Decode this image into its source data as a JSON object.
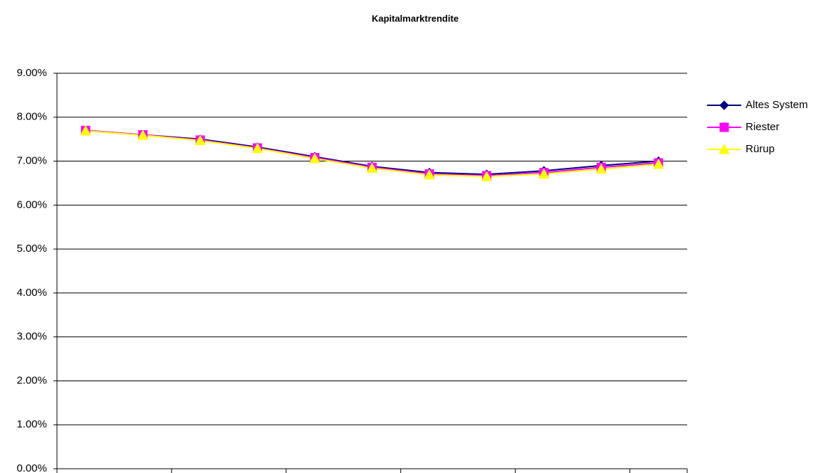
{
  "chart_data": {
    "type": "line",
    "title": "Kapitalmarktrendite",
    "categories": [
      null,
      null,
      null,
      null,
      null,
      null,
      null,
      null,
      null,
      null,
      null
    ],
    "series": [
      {
        "name": "Altes System",
        "color": "#000080",
        "marker": "diamond",
        "values": [
          7.7,
          7.6,
          7.5,
          7.32,
          7.1,
          6.88,
          6.74,
          6.7,
          6.78,
          6.9,
          7.0
        ]
      },
      {
        "name": "Riester",
        "color": "#ff00ff",
        "marker": "square",
        "values": [
          7.7,
          7.6,
          7.48,
          7.3,
          7.08,
          6.86,
          6.71,
          6.67,
          6.74,
          6.86,
          6.96
        ]
      },
      {
        "name": "Rürup",
        "color": "#ffff00",
        "marker": "triangle",
        "values": [
          7.69,
          7.59,
          7.47,
          7.29,
          7.06,
          6.84,
          6.69,
          6.65,
          6.71,
          6.82,
          6.93
        ]
      }
    ],
    "ylim": [
      0,
      9
    ],
    "yticks": [
      {
        "value": 0,
        "label": "0.00%"
      },
      {
        "value": 1,
        "label": "1.00%"
      },
      {
        "value": 2,
        "label": "2.00%"
      },
      {
        "value": 3,
        "label": "3.00%"
      },
      {
        "value": 4,
        "label": "4.00%"
      },
      {
        "value": 5,
        "label": "5.00%"
      },
      {
        "value": 6,
        "label": "6.00%"
      },
      {
        "value": 7,
        "label": "7.00%"
      },
      {
        "value": 8,
        "label": "8.00%"
      },
      {
        "value": 9,
        "label": "9.00%"
      }
    ],
    "grid": true,
    "legend": "right"
  }
}
